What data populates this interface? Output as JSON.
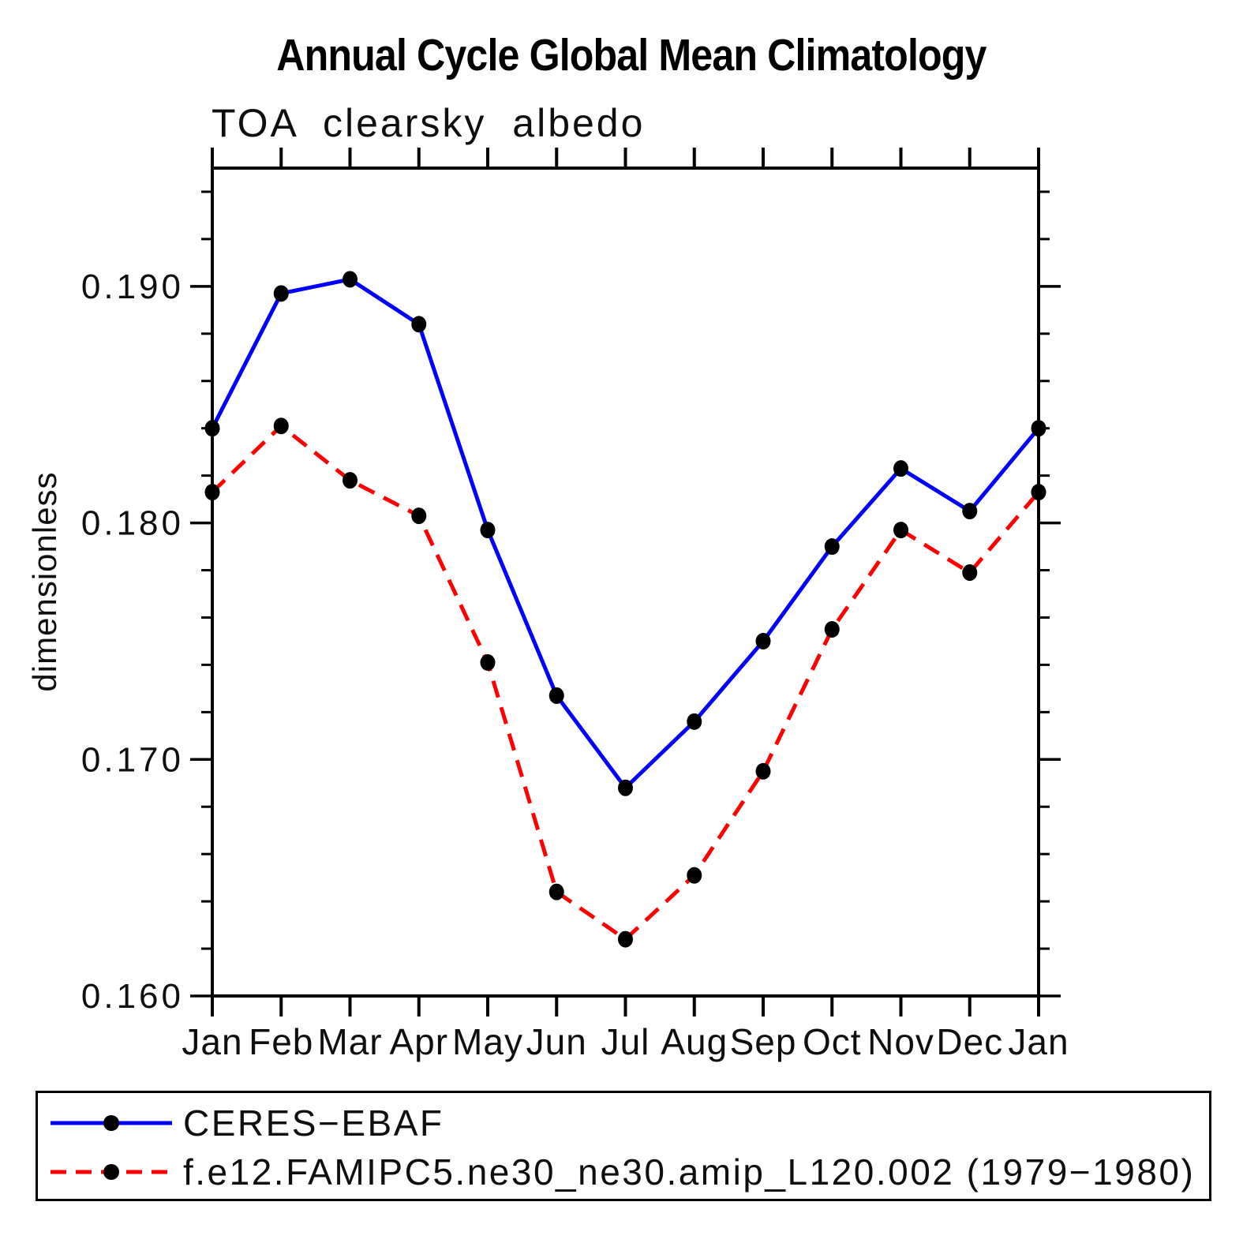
{
  "page": {
    "background": "#ffffff"
  },
  "chart": {
    "title": "Annual Cycle Global Mean Climatology",
    "subtitle": "TOA clearsky albedo",
    "y_axis_label": "dimensionless"
  },
  "chart_data": {
    "type": "line",
    "title": "Annual Cycle Global Mean Climatology",
    "subtitle": "TOA clearsky albedo",
    "ylabel": "dimensionless",
    "categories": [
      "Jan",
      "Feb",
      "Mar",
      "Apr",
      "May",
      "Jun",
      "Jul",
      "Aug",
      "Sep",
      "Oct",
      "Nov",
      "Dec",
      "Jan"
    ],
    "series": [
      {
        "name": "CERES−EBAF",
        "color": "#0000ff",
        "line_style": "solid",
        "marker": "filled-circle",
        "marker_color": "#000000",
        "values": [
          0.184,
          0.1897,
          0.1903,
          0.1884,
          0.1797,
          0.1727,
          0.1688,
          0.1716,
          0.175,
          0.179,
          0.1823,
          0.1805,
          0.184
        ]
      },
      {
        "name": "f.e12.FAMIPC5.ne30_ne30.amip_L120.002 (1979−1980)",
        "color": "#ff0000",
        "line_style": "dashed",
        "marker": "filled-circle",
        "marker_color": "#000000",
        "values": [
          0.1813,
          0.1841,
          0.1818,
          0.1803,
          0.1741,
          0.1644,
          0.1624,
          0.1651,
          0.1695,
          0.1755,
          0.1797,
          0.1779,
          0.1813
        ]
      }
    ],
    "ylim": [
      0.16,
      0.195
    ],
    "y_major_ticks": [
      {
        "value": 0.16,
        "label": "0.160"
      },
      {
        "value": 0.17,
        "label": "0.170"
      },
      {
        "value": 0.18,
        "label": "0.180"
      },
      {
        "value": 0.19,
        "label": "0.190"
      }
    ],
    "y_minor_step": 0.002,
    "grid": false,
    "legend_position": "bottom"
  }
}
